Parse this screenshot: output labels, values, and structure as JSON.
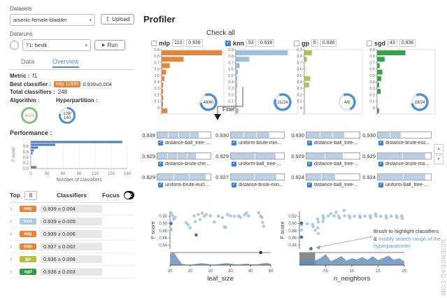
{
  "watermark": "SCIENCEAQ.COM",
  "sidebar": {
    "datasets_label": "Datasets",
    "dataset_value": "arsenic-female-bladder",
    "upload_label": "Upload",
    "dataruns_label": "Dataruns",
    "datarun_value": "71: bestk",
    "run_label": "Run",
    "tabs": [
      {
        "label": "Data",
        "active": false
      },
      {
        "label": "Overview",
        "active": true
      }
    ],
    "info": {
      "metric_label": "Metric :",
      "metric_value": "f1",
      "best_label": "Best classifier :",
      "best_badge": "mlp 11939",
      "best_score": "0.939±0.004",
      "total_label": "Total classifiers :",
      "total_value": "248",
      "algorithm_label": "Algorithm :",
      "algorithm_ratio": "4/14",
      "algorithm_pct": 1.0,
      "algorithm_color": "#82c182",
      "hyperpartition_label": "Hyperpartition :",
      "hyperpartition_ratio_top": "109/",
      "hyperpartition_ratio_bottom": "140",
      "hyperpartition_pct": 0.78,
      "hyperpartition_color": "#4a90d2"
    },
    "performance": {
      "title": "Performance :",
      "chart": {
        "type": "bar",
        "bins": [
          {
            "f_score_bin": "0.9-1.0",
            "count": 170
          },
          {
            "f_score_bin": "0.8-0.9",
            "count": 45
          },
          {
            "f_score_bin": "0.7-0.8",
            "count": 13
          },
          {
            "f_score_bin": "0.6-0.7",
            "count": 5
          },
          {
            "f_score_bin": "0.5-0.6",
            "count": 3
          },
          {
            "f_score_bin": "0.0-0.1",
            "count": 10
          }
        ],
        "x_ticks": [
          0,
          30,
          60,
          90,
          120,
          150,
          180
        ],
        "y_ticks": [
          "0.8",
          "0.6",
          "0.4",
          "0.2",
          "0.0"
        ],
        "xlabel": "Number of classifiers",
        "ylabel": "F score",
        "bar_color": "#4f81bd"
      }
    },
    "table": {
      "top_label": "Top",
      "top_value": "8",
      "classifiers_label": "Classifiers",
      "focus_label": "Focus",
      "focus_on": true,
      "rows": [
        {
          "algo": "mlp",
          "color": "#e8833a",
          "score": "0.939 ± 0.004"
        },
        {
          "algo": "knn",
          "color": "#a8c8e8",
          "score": "0.939 ± 0.005"
        },
        {
          "algo": "mlp",
          "color": "#e8833a",
          "score": "0.939 ± 0.006"
        },
        {
          "algo": "mlp",
          "color": "#e8833a",
          "score": "0.937 ± 0.002"
        },
        {
          "algo": "gp",
          "color": "#b6bd3f",
          "score": "0.936 ± 0.008"
        },
        {
          "algo": "sgd",
          "color": "#2e9e44",
          "score": "0.936 ± 0.003"
        }
      ]
    }
  },
  "profiler": {
    "title": "Profiler",
    "check_all_label": "Check all",
    "filter_label": "Filter",
    "histogram_y_ticks": [
      "0.9",
      "0.8",
      "0.7",
      "0.6",
      "0.5",
      "0.4",
      "0.3",
      "0.2",
      "0.1",
      "0"
    ],
    "algorithms": [
      {
        "name": "mlp",
        "count": "113",
        "score": "0.939",
        "checked": false,
        "color": "#e8833a",
        "ratio": "48/60",
        "pct": 0.8,
        "bars": [
          1.0,
          0.36,
          0.13,
          0.07,
          0.04,
          0.02,
          0.02,
          0.02,
          0.02,
          0.09
        ]
      },
      {
        "name": "knn",
        "count": "53",
        "score": "0.939",
        "checked": true,
        "color": "#9dbfdf",
        "ratio": "21/24",
        "pct": 0.875,
        "bars": [
          0.86,
          0.22,
          0.06,
          0.03,
          0.02,
          0.02,
          0.01,
          0.01,
          0.01,
          0.04
        ]
      },
      {
        "name": "gp",
        "count": "6",
        "score": "0.936",
        "checked": false,
        "color": "#b9bd54",
        "ratio": "4/8",
        "pct": 0.5,
        "bars": [
          0.13,
          0.04,
          0,
          0,
          0.1,
          0.08,
          0,
          0,
          0,
          0
        ]
      },
      {
        "name": "sgd",
        "count": "43",
        "score": "0.936",
        "checked": false,
        "color": "#33a348",
        "ratio": "19/24",
        "pct": 0.79,
        "bars": [
          0.5,
          0.13,
          0.04,
          0.09,
          0.07,
          0.03,
          0.06,
          0,
          0,
          0.03
        ]
      }
    ],
    "hyperpartitions": [
      {
        "score": "0.939",
        "name": "distance-ball_tree-...",
        "checked": true,
        "segments": [
          0.2,
          0.18,
          0.2,
          0.16
        ]
      },
      {
        "score": "0.930",
        "name": "uniform-brute-min...",
        "checked": true,
        "segments": [
          0.24,
          0.22,
          0.24
        ]
      },
      {
        "score": "0.930",
        "name": "distance-ball_tree-...",
        "checked": true,
        "segments": [
          0.25,
          0.22,
          0.22
        ]
      },
      {
        "score": "0.930",
        "name": "distance-brute-euc...",
        "checked": true,
        "segments": [
          0.22,
          0.2
        ]
      },
      {
        "score": "0.929",
        "name": "distance-brute-che...",
        "checked": true,
        "segments": [
          0.18,
          0.17,
          0.18,
          0.16
        ]
      },
      {
        "score": "0.929",
        "name": "uniform-ball_tree-...",
        "checked": true,
        "segments": [
          0.45,
          0.38
        ]
      },
      {
        "score": "0.929",
        "name": "distance-ball_tree-...",
        "checked": true,
        "segments": [
          0.34,
          0.33
        ]
      },
      {
        "score": "0.929",
        "name": "distance-brute-ma...",
        "checked": true,
        "segments": [
          0.46,
          0.42
        ]
      },
      {
        "score": "0.929",
        "name": "uniform-brute-eucl...",
        "checked": true,
        "segments": [
          0.3,
          0.28,
          0.3
        ]
      },
      {
        "score": "0.927",
        "name": "distance-brute-min...",
        "checked": true,
        "segments": [
          0.44,
          0.4
        ]
      },
      {
        "score": "0.924",
        "name": "distance-ball_tree-...",
        "checked": true,
        "segments": [
          0.28,
          0.24
        ]
      },
      {
        "score": "0.924",
        "name": "uniform-ball_tree-...",
        "checked": true,
        "segments": [
          0.48,
          0.4
        ]
      }
    ]
  },
  "plots": [
    {
      "type": "scatter",
      "xlabel": "leaf_size",
      "ylabel": "F score",
      "x_domain": [
        0,
        50
      ],
      "x_ticks": [
        0,
        10,
        20,
        30,
        40,
        50
      ],
      "x_tick_labels": [
        "00",
        "10",
        "20",
        "30",
        "40",
        "50"
      ],
      "y_ticks": [
        0.92,
        0.9,
        0.88,
        0.86,
        0.84
      ],
      "y_tick_labels": [
        "0.92",
        "0.90",
        "0.88",
        "0.86",
        "0.84"
      ],
      "points": [
        [
          0.5,
          0.929
        ],
        [
          1.2,
          0.922
        ],
        [
          1.8,
          0.912
        ],
        [
          0.5,
          0.9
        ],
        [
          0.6,
          0.883
        ],
        [
          2.5,
          0.917
        ],
        [
          8,
          0.902
        ],
        [
          9,
          0.897
        ],
        [
          10,
          0.888
        ],
        [
          12,
          0.921
        ],
        [
          12.5,
          0.905
        ],
        [
          13,
          0.868
        ],
        [
          14,
          0.925
        ],
        [
          15,
          0.911
        ],
        [
          16,
          0.929
        ],
        [
          17,
          0.92
        ],
        [
          18,
          0.925
        ],
        [
          20,
          0.921
        ],
        [
          22,
          0.904
        ],
        [
          24,
          0.92
        ],
        [
          26,
          0.916
        ],
        [
          27,
          0.891
        ],
        [
          27.6,
          0.889
        ],
        [
          28.5,
          0.925
        ],
        [
          30,
          0.921
        ],
        [
          32,
          0.92
        ],
        [
          34,
          0.921
        ],
        [
          35,
          0.917
        ],
        [
          37,
          0.924
        ],
        [
          38,
          0.929
        ],
        [
          39,
          0.921
        ],
        [
          44,
          0.93
        ],
        [
          45,
          0.921
        ],
        [
          45.6,
          0.917
        ],
        [
          46,
          0.903
        ],
        [
          46.5,
          0.892
        ]
      ],
      "dark_points": [
        [
          0.5,
          0.9
        ],
        [
          13,
          0.868
        ]
      ],
      "line_marker_x": 45,
      "density": [
        0.9,
        1.0,
        0.5,
        0.1,
        0.04,
        0.04,
        0.07,
        0.12,
        0.15,
        0.11,
        0.05,
        0.04,
        0.08,
        0.13,
        0.16,
        0.12,
        0.07,
        0.05,
        0.09,
        0.11,
        0.07,
        0.05,
        0.07,
        0.14,
        0.18,
        0.1
      ],
      "brush": null
    },
    {
      "type": "scatter",
      "xlabel": "n_neighbors",
      "ylabel": "F score",
      "x_domain": [
        0,
        20
      ],
      "x_ticks": [
        5,
        10,
        15,
        20
      ],
      "x_tick_labels": [
        "05",
        "10",
        "15",
        "20"
      ],
      "y_ticks": [
        0.92,
        0.9,
        0.88,
        0.86,
        0.84
      ],
      "y_tick_labels": [
        "0.92",
        "0.90",
        "0.88",
        "0.86",
        "0.84"
      ],
      "points": [
        [
          0.4,
          0.901
        ],
        [
          0.4,
          0.896
        ],
        [
          0.4,
          0.882
        ],
        [
          0.4,
          0.862
        ],
        [
          1.5,
          0.899
        ],
        [
          2.5,
          0.897
        ],
        [
          2.6,
          0.891
        ],
        [
          3,
          0.881
        ],
        [
          3.5,
          0.912
        ],
        [
          3.6,
          0.904
        ],
        [
          3.5,
          0.888
        ],
        [
          3.6,
          0.872
        ],
        [
          4.5,
          0.921
        ],
        [
          4.6,
          0.915
        ],
        [
          4.5,
          0.906
        ],
        [
          5.5,
          0.921
        ],
        [
          6,
          0.927
        ],
        [
          6.6,
          0.921
        ],
        [
          7,
          0.931
        ],
        [
          7.5,
          0.921
        ],
        [
          7.6,
          0.915
        ],
        [
          8.5,
          0.936
        ],
        [
          8.6,
          0.921
        ],
        [
          9.5,
          0.921
        ],
        [
          9.6,
          0.916
        ],
        [
          10.5,
          0.92
        ],
        [
          11.5,
          0.921
        ],
        [
          11.6,
          0.917
        ],
        [
          12.5,
          0.92
        ],
        [
          13.5,
          0.921
        ],
        [
          13.6,
          0.916
        ],
        [
          14.5,
          0.926
        ],
        [
          14.6,
          0.92
        ],
        [
          15.5,
          0.92
        ],
        [
          16.5,
          0.921
        ],
        [
          16.6,
          0.915
        ],
        [
          17.5,
          0.92
        ],
        [
          18.5,
          0.921
        ],
        [
          18.6,
          0.917
        ],
        [
          19.5,
          0.921
        ],
        [
          19.6,
          0.914
        ]
      ],
      "dark_points": [
        [
          0.4,
          0.901
        ],
        [
          0.4,
          0.862
        ],
        [
          2.2,
          0.83
        ]
      ],
      "line_marker_x": null,
      "density": [
        0.42,
        0.5,
        0.45,
        0.38,
        0.55,
        0.88,
        0.32,
        0.5,
        0.72,
        0.36,
        0.55,
        0.45,
        0.65,
        0.42,
        0.7,
        0.4,
        0.58,
        0.75,
        0.42,
        0.55,
        0.3
      ],
      "brush": [
        0,
        3
      ]
    }
  ],
  "annotation": {
    "line1": "Brush to highlight classifiers",
    "amp": "&",
    "line2": "modify search range of the",
    "line3": "hyperparameter"
  }
}
